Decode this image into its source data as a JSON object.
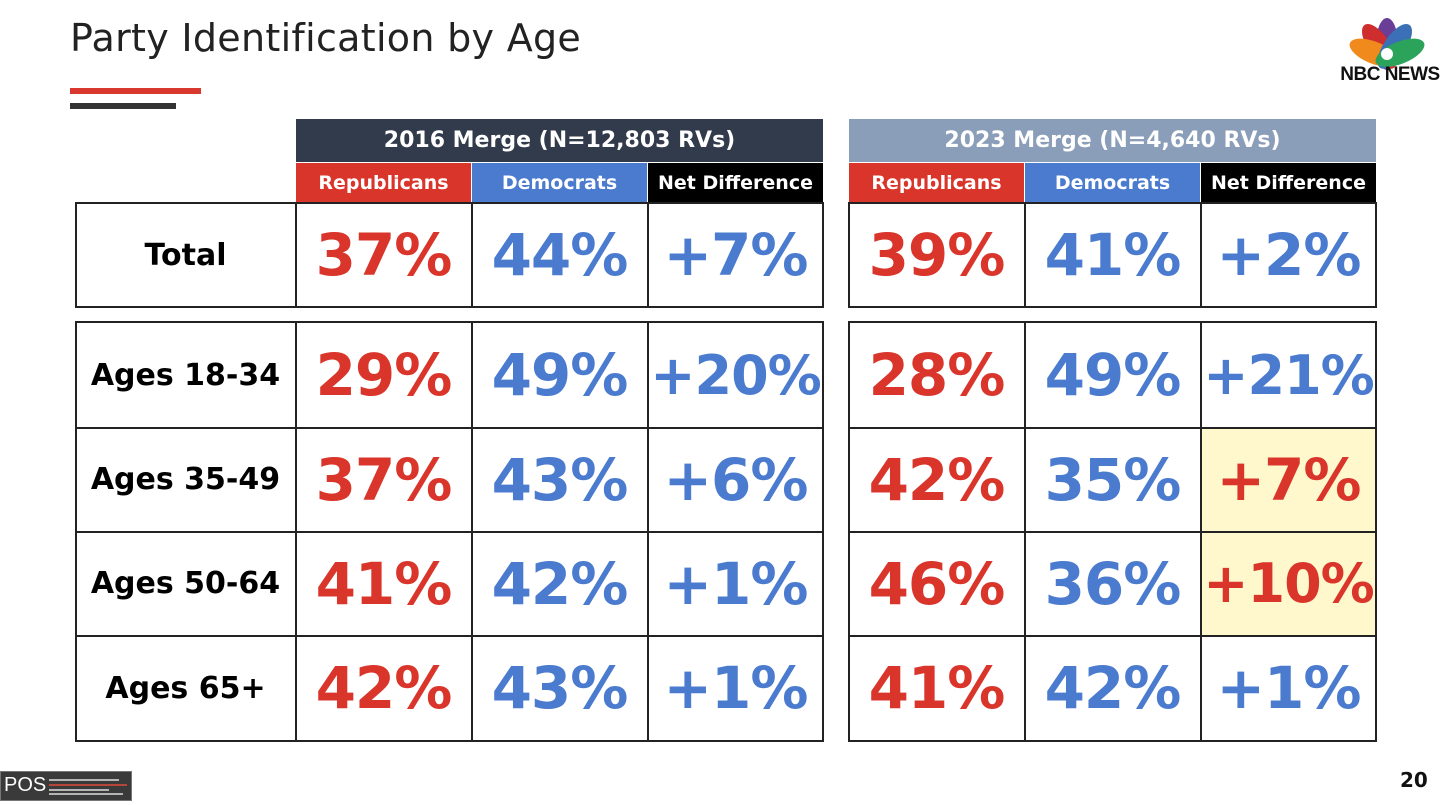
{
  "title": "Party Identification by Age",
  "brand": {
    "name": "NBC NEWS",
    "footer_label": "POS",
    "page_number": "20"
  },
  "colors": {
    "rep": "#d9352b",
    "dem": "#4a7bcf",
    "net_dark": "#000000",
    "hdr2016": "#323b4b",
    "hdr2023": "#8a9db9",
    "highlight": "#fff8cc"
  },
  "groups": [
    {
      "title": "2016 Merge (N=12,803 RVs)",
      "headers": [
        "Republicans",
        "Democrats",
        "Net Difference"
      ]
    },
    {
      "title": "2023 Merge (N=4,640 RVs)",
      "headers": [
        "Republicans",
        "Democrats",
        "Net Difference"
      ]
    }
  ],
  "rows": [
    {
      "label": "Total",
      "y2016": [
        "37%",
        "44%",
        "+7%"
      ],
      "y2023": [
        "39%",
        "41%",
        "+2%"
      ]
    },
    {
      "label": "Ages 18-34",
      "y2016": [
        "29%",
        "49%",
        "+20%"
      ],
      "y2023": [
        "28%",
        "49%",
        "+21%"
      ]
    },
    {
      "label": "Ages 35-49",
      "y2016": [
        "37%",
        "43%",
        "+6%"
      ],
      "y2023": [
        "42%",
        "35%",
        "+7%"
      ]
    },
    {
      "label": "Ages 50-64",
      "y2016": [
        "41%",
        "42%",
        "+1%"
      ],
      "y2023": [
        "46%",
        "36%",
        "+10%"
      ]
    },
    {
      "label": "Ages 65+",
      "y2016": [
        "42%",
        "43%",
        "+1%"
      ],
      "y2023": [
        "41%",
        "42%",
        "+1%"
      ]
    }
  ],
  "chart_data": {
    "type": "table",
    "title": "Party Identification by Age",
    "columns": [
      "2016 Republicans",
      "2016 Democrats",
      "2016 Net Difference",
      "2023 Republicans",
      "2023 Democrats",
      "2023 Net Difference"
    ],
    "row_labels": [
      "Total",
      "Ages 18-34",
      "Ages 35-49",
      "Ages 50-64",
      "Ages 65+"
    ],
    "values": [
      [
        "37%",
        "44%",
        "+7%",
        "39%",
        "41%",
        "+2%"
      ],
      [
        "29%",
        "49%",
        "+20%",
        "28%",
        "49%",
        "+21%"
      ],
      [
        "37%",
        "43%",
        "+6%",
        "42%",
        "35%",
        "+7%"
      ],
      [
        "41%",
        "42%",
        "+1%",
        "46%",
        "36%",
        "+10%"
      ],
      [
        "42%",
        "43%",
        "+1%",
        "41%",
        "42%",
        "+1%"
      ]
    ],
    "net_advantage": [
      "D",
      "D",
      "D",
      "D",
      "D",
      "D",
      "D",
      "D",
      "D",
      "D",
      "D",
      "D",
      "D",
      "R",
      "D",
      "R",
      "D",
      "D"
    ],
    "net_highlight": [
      [
        false,
        false
      ],
      [
        false,
        false
      ],
      [
        false,
        true
      ],
      [
        false,
        true
      ],
      [
        false,
        false
      ]
    ],
    "net_party": [
      [
        "dem",
        "dem"
      ],
      [
        "dem",
        "dem"
      ],
      [
        "dem",
        "rep"
      ],
      [
        "dem",
        "rep"
      ],
      [
        "dem",
        "dem"
      ]
    ]
  }
}
